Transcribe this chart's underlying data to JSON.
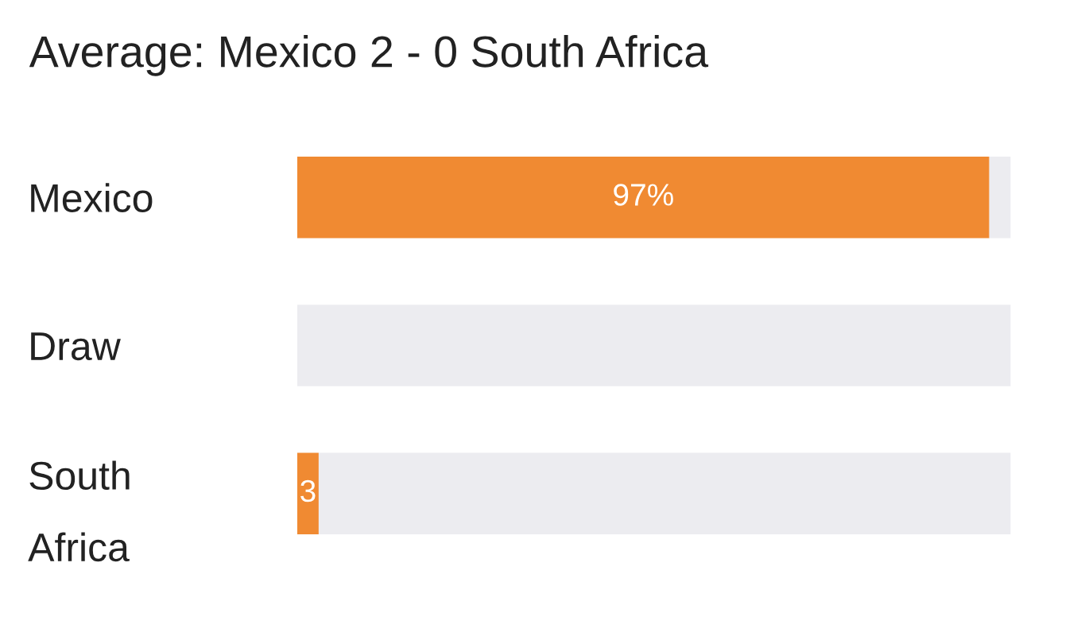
{
  "chart_data": {
    "type": "bar",
    "title": "Average: Mexico 2 - 0 South Africa",
    "orientation": "horizontal",
    "stacked": true,
    "categories": [
      "Mexico",
      "Draw",
      "South Africa"
    ],
    "series": [
      {
        "color": "#f08a32",
        "values": [
          97,
          0,
          3
        ],
        "value_labels": [
          "97%",
          null,
          "3"
        ]
      },
      {
        "color": "#ececf0",
        "values": [
          3,
          100,
          97
        ]
      }
    ],
    "xlim": [
      0,
      100
    ],
    "grid": false,
    "legend": false
  }
}
